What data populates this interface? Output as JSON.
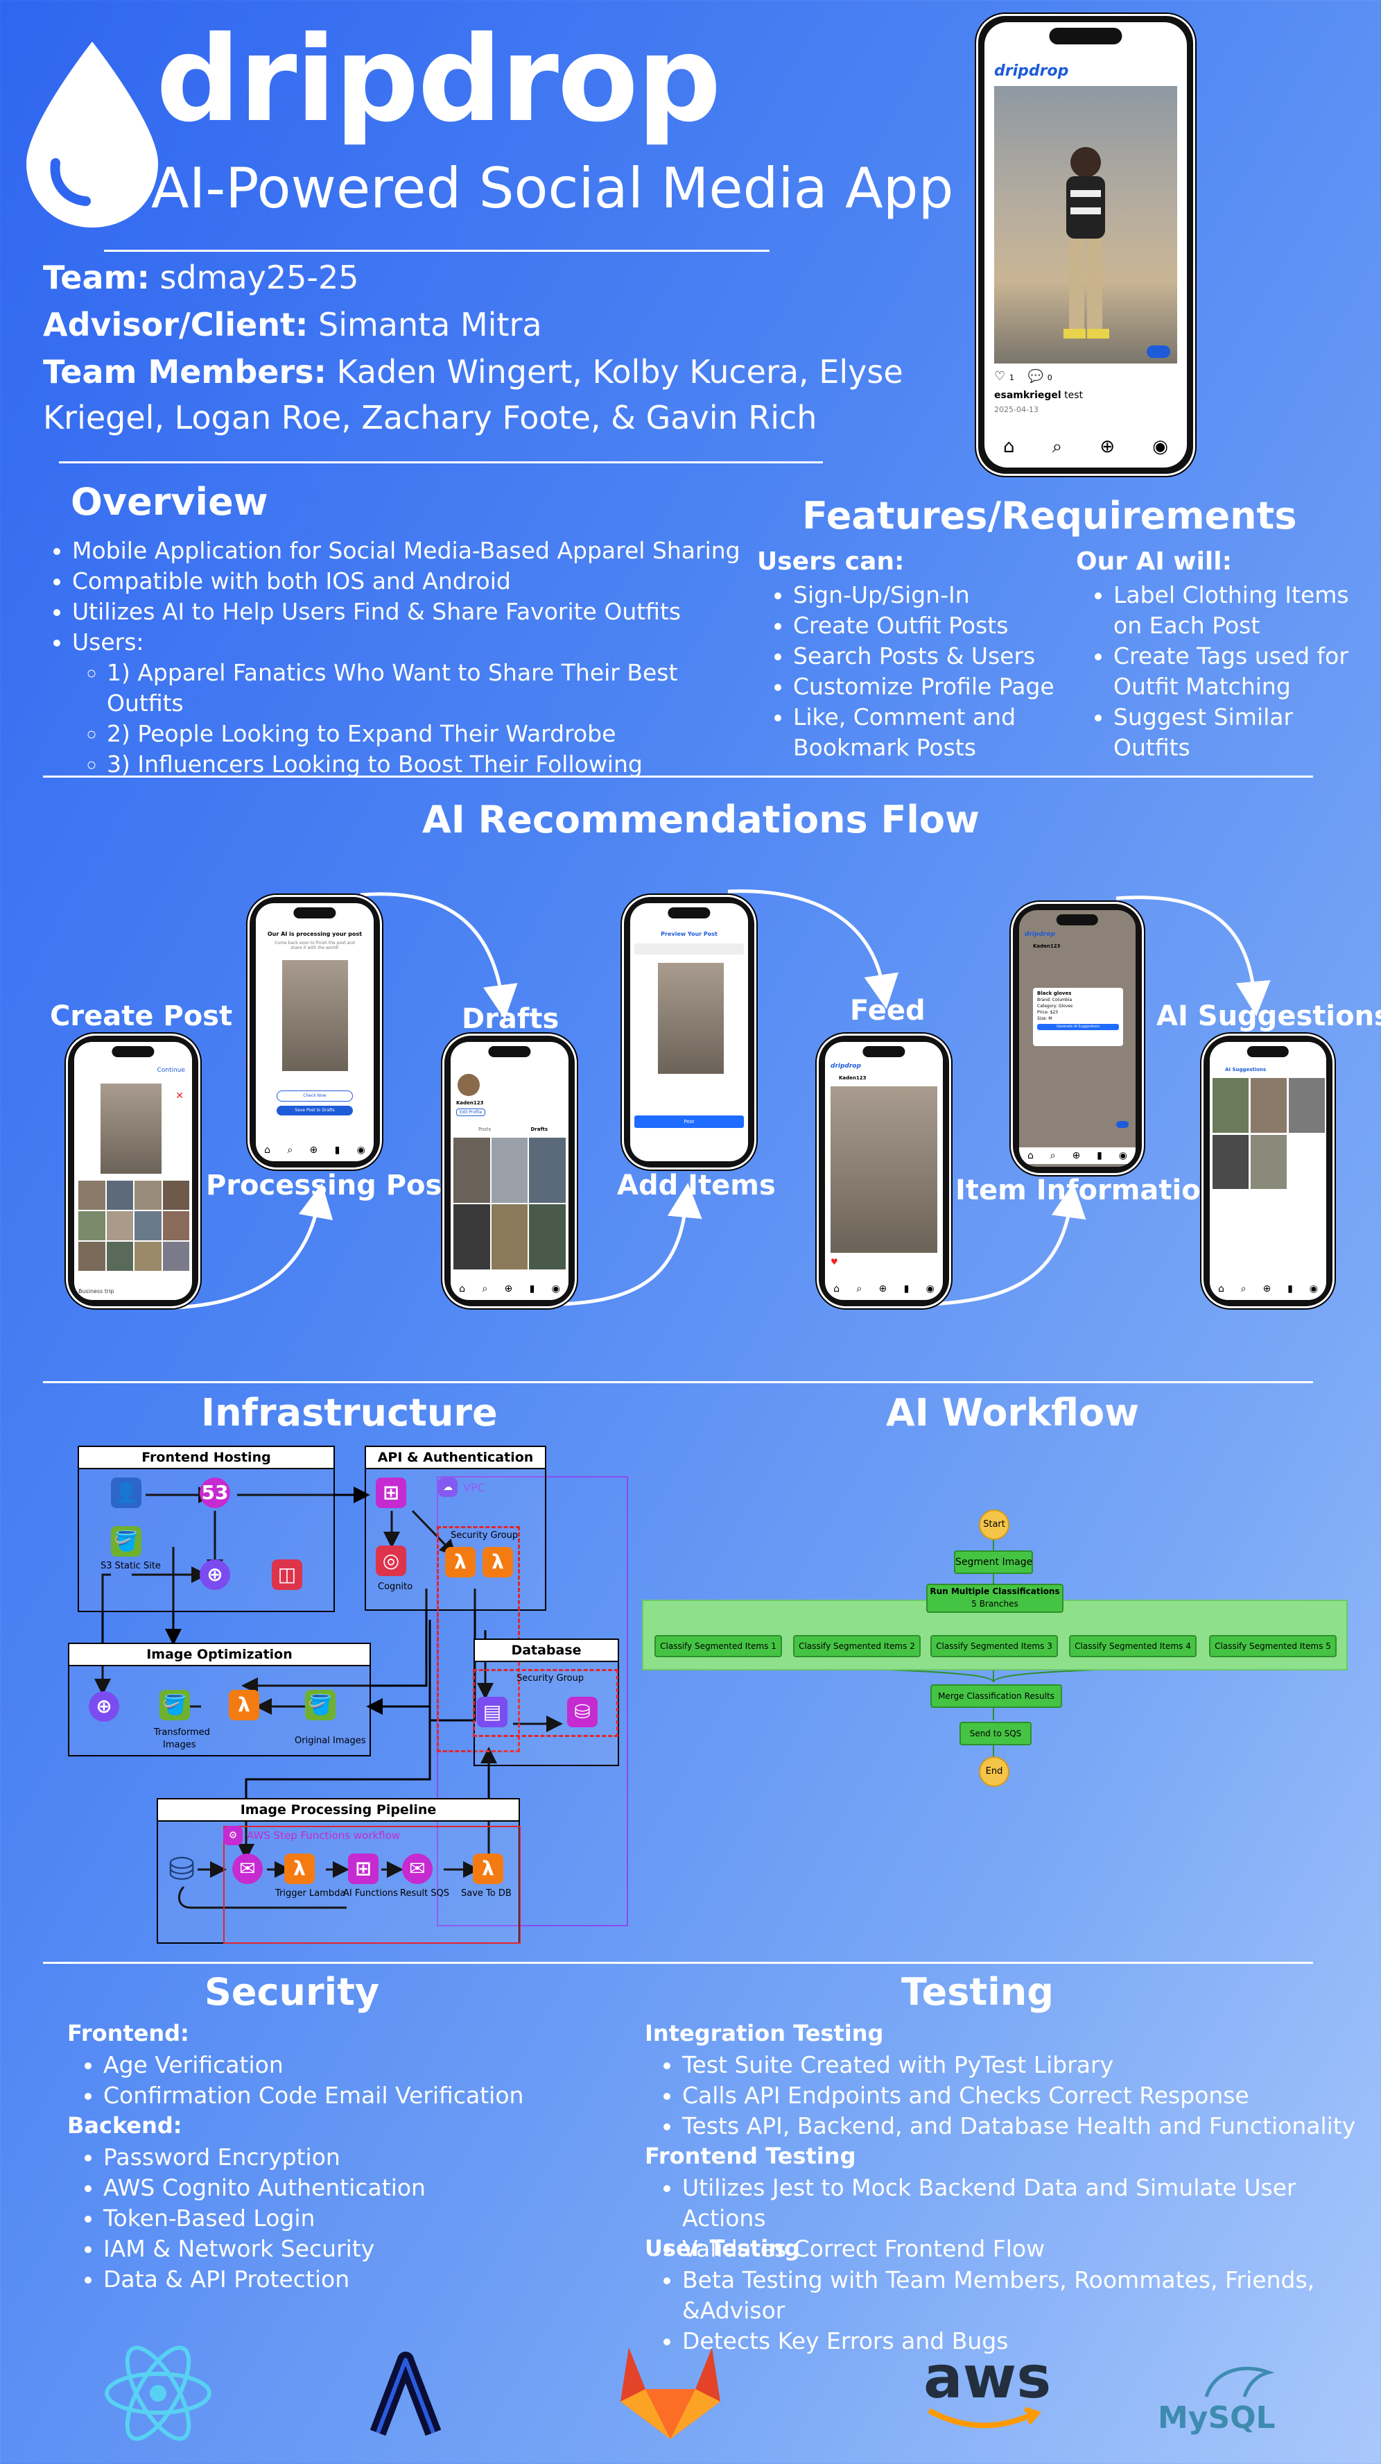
{
  "header": {
    "brand": "dripdrop",
    "subtitle": "AI-Powered Social Media App",
    "team_label": "Team:",
    "team_value": "sdmay25-25",
    "advisor_label": "Advisor/Client:",
    "advisor_value": "Simanta Mitra",
    "members_label": "Team Members:",
    "members_line1": "Kaden Wingert, Kolby Kucera, Elyse",
    "members_line2": "Kriegel, Logan Roe, Zachary Foote,  & Gavin Rich"
  },
  "hero_phone": {
    "app_name": "dripdrop",
    "likes": "1",
    "comments": "0",
    "username": "esamkriegel",
    "caption": "test",
    "date": "2025-04-13"
  },
  "overview": {
    "title": "Overview",
    "items": [
      "Mobile Application for Social Media-Based Apparel Sharing",
      "Compatible with both IOS and Android",
      "Utilizes AI to Help Users Find & Share Favorite Outfits",
      "Users:"
    ],
    "users": [
      "1) Apparel Fanatics Who Want to Share Their Best Outfits",
      "2) People Looking to Expand Their Wardrobe",
      "3) Influencers Looking to Boost Their Following"
    ]
  },
  "features": {
    "title": "Features/Requirements",
    "users_title": "Users can:",
    "users_items": [
      "Sign-Up/Sign-In",
      "Create Outfit Posts",
      "Search Posts & Users",
      "Customize Profile Page",
      "Like, Comment and Bookmark Posts"
    ],
    "ai_title": "Our AI will:",
    "ai_items": [
      "Label Clothing Items on Each Post",
      "Create Tags used for Outfit Matching",
      "Suggest Similar Outfits"
    ]
  },
  "flow": {
    "title": "AI Recommendations Flow",
    "labels": {
      "create_post": "Create Post",
      "processing": "Processing Post",
      "drafts": "Drafts",
      "add_items": "Add Items",
      "feed": "Feed",
      "item_info": "Item Information",
      "ai_suggestions": "AI Suggestions"
    },
    "screens": {
      "create_continue": "Continue",
      "create_caption": "Business trip",
      "processing_title": "Our AI is processing your post",
      "processing_sub": "Come back soon to finish the post and share it with the world!",
      "processing_btn1": "Check Now",
      "processing_btn2": "Save Post to Drafts",
      "drafts_user": "Kaden123",
      "drafts_edit": "Edit Profile",
      "drafts_tab1": "Posts",
      "drafts_tab2": "Drafts",
      "preview_title": "Preview Your Post",
      "preview_btn": "Post",
      "feed_app": "dripdrop",
      "feed_user": "Kaden123",
      "info_app": "dripdrop",
      "info_user": "Kaden123",
      "info_item": "Black gloves",
      "info_brand": "Brand: Columbia",
      "info_category": "Category: Gloves",
      "info_price": "Price: $23",
      "info_size": "Size: M",
      "info_btn": "Generate AI Suggestions",
      "sugg_title": "AI Suggestions"
    }
  },
  "infrastructure": {
    "title": "Infrastructure",
    "frontend": "Frontend Hosting",
    "s3_site": "S3 Static Site",
    "api": "API & Authentication",
    "vpc": "VPC",
    "cognito": "Cognito",
    "security_group": "Security Group",
    "image_opt": "Image Optimization",
    "transformed": "Transformed",
    "images": "Images",
    "original": "Original Images",
    "database": "Database",
    "db_security": "Security Group",
    "pipeline": "Image Processing Pipeline",
    "step_fn": "AWS Step Functions workflow",
    "trigger": "Trigger Lambda",
    "ai_fn": "AI Functions",
    "result": "Result SQS",
    "save": "Save To DB"
  },
  "workflow": {
    "title": "AI Workflow",
    "start": "Start",
    "segment": "Segment Image",
    "multi": "Run Multiple Classifications",
    "branches": "5 Branches",
    "classify": [
      "Classify Segmented Items 1",
      "Classify Segmented Items 2",
      "Classify Segmented Items 3",
      "Classify Segmented Items 4",
      "Classify Segmented Items 5"
    ],
    "merge": "Merge Classification Results",
    "sqs": "Send to SQS",
    "end": "End"
  },
  "security": {
    "title": "Security",
    "frontend_title": "Frontend:",
    "frontend_items": [
      "Age Verification",
      "Confirmation Code Email Verification"
    ],
    "backend_title": "Backend:",
    "backend_items": [
      "Password Encryption",
      "AWS Cognito Authentication",
      "Token-Based Login",
      "IAM & Network Security",
      "Data & API Protection"
    ]
  },
  "testing": {
    "title": "Testing",
    "integration_title": "Integration Testing",
    "integration_items": [
      "Test Suite Created with PyTest Library",
      "Calls API Endpoints and Checks Correct Response",
      "Tests API, Backend, and Database Health and Functionality"
    ],
    "frontend_title": "Frontend Testing",
    "frontend_items": [
      "Utilizes Jest to Mock Backend Data and Simulate User Actions",
      "Validates Correct Frontend Flow"
    ],
    "user_title": "User Testing",
    "user_items": [
      "Beta Testing with Team Members, Roommates, Friends, &Advisor",
      "Detects Key Errors and Bugs"
    ]
  },
  "logos": {
    "aws": "aws",
    "mysql": "MySQL"
  }
}
